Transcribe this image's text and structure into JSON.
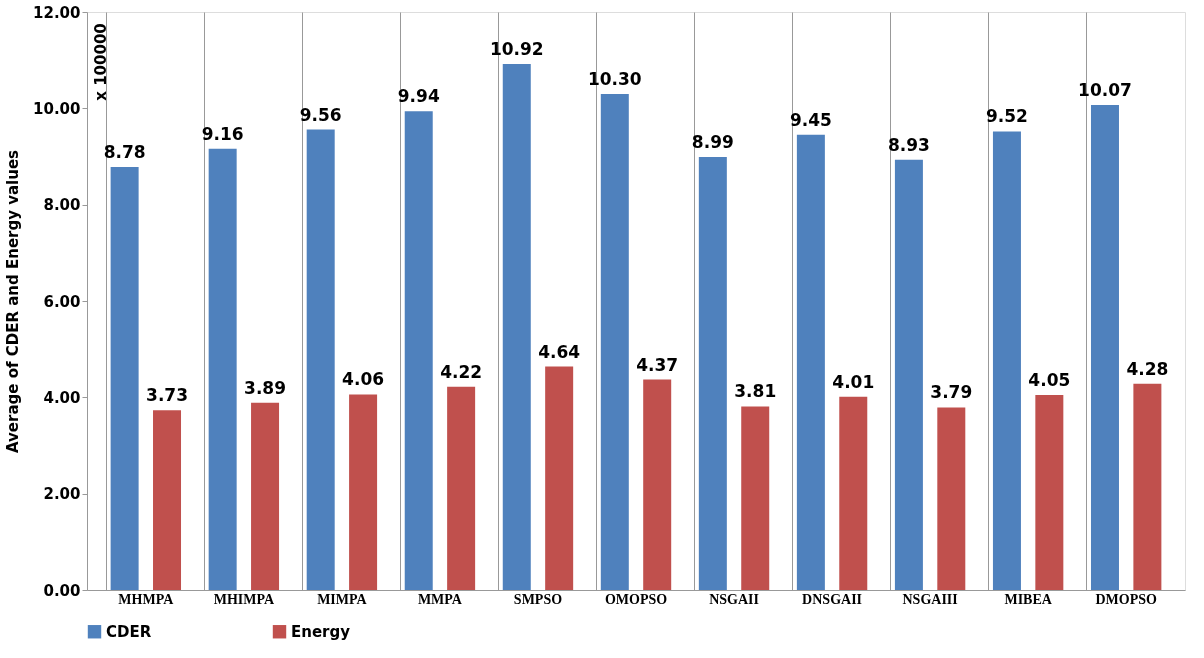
{
  "chart_data": {
    "type": "bar",
    "ylabel": "Average of CDER and Energy values",
    "categories": [
      "MHMPA",
      "MHIMPA",
      "MIMPA",
      "MMPA",
      "SMPSO",
      "OMOPSO",
      "NSGAII",
      "DNSGAII",
      "NSGAIII",
      "MIBEA",
      "DMOPSO"
    ],
    "series": [
      {
        "name": "CDER",
        "color": "#4f81bd",
        "values": [
          8.78,
          9.16,
          9.56,
          9.94,
          10.92,
          10.3,
          8.99,
          9.45,
          8.93,
          9.52,
          10.07
        ]
      },
      {
        "name": "Energy",
        "color": "#c0504d",
        "values": [
          3.73,
          3.89,
          4.06,
          4.22,
          4.64,
          4.37,
          3.81,
          4.01,
          3.79,
          4.05,
          4.28
        ]
      }
    ],
    "value_labels": [
      [
        "8.78",
        "9.16",
        "9.56",
        "9.94",
        "10.92",
        "10.30",
        "8.99",
        "9.45",
        "8.93",
        "9.52",
        "10.07"
      ],
      [
        "3.73",
        "3.89",
        "4.06",
        "4.22",
        "4.64",
        "4.37",
        "3.81",
        "4.01",
        "3.79",
        "4.05",
        "4.28"
      ]
    ],
    "ylim": [
      0,
      12
    ],
    "yticks": [
      {
        "value": 0,
        "label": "0.00"
      },
      {
        "value": 2,
        "label": "2.00"
      },
      {
        "value": 4,
        "label": "4.00"
      },
      {
        "value": 6,
        "label": "6.00"
      },
      {
        "value": 8,
        "label": "8.00"
      },
      {
        "value": 10,
        "label": "10.00"
      },
      {
        "value": 12,
        "label": "12.00"
      }
    ],
    "grid": "x",
    "legend": "bottom",
    "annotations": [
      "x 100000"
    ]
  }
}
